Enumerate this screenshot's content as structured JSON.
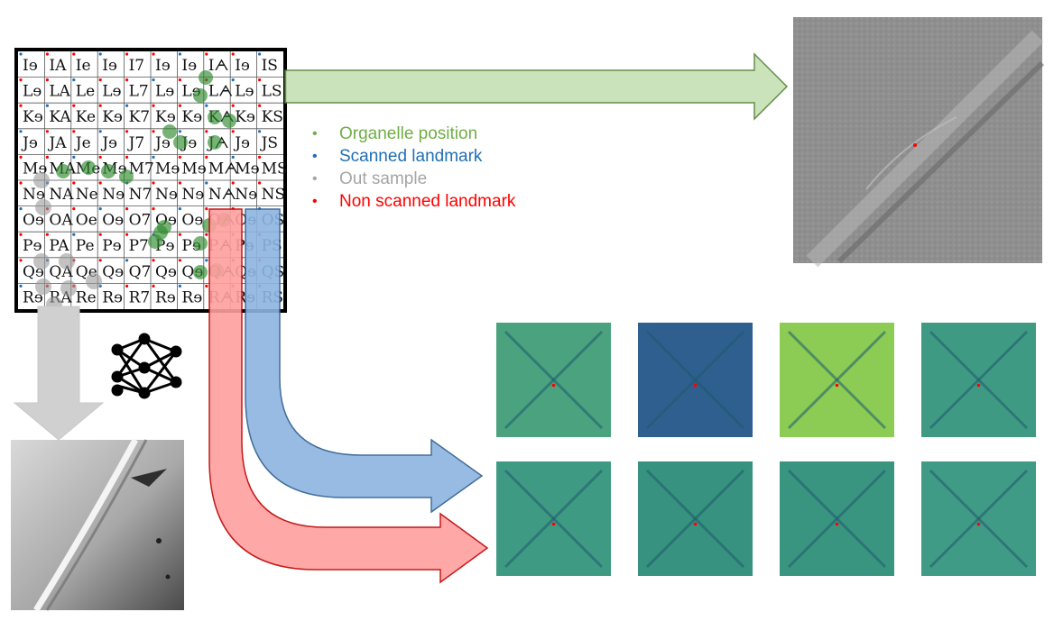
{
  "grid": {
    "row_letters": [
      "I",
      "L",
      "K",
      "J",
      "M",
      "N",
      "O",
      "P",
      "Q",
      "R"
    ],
    "column_marks": [
      "ɘ",
      "A",
      "e",
      "ɘ",
      "7",
      "ɘ",
      "ɘ",
      "ᗅ",
      "ɘ",
      "S"
    ]
  },
  "legend": {
    "items": [
      {
        "label": "Organelle position",
        "color": "#70ad47"
      },
      {
        "label": "Scanned landmark",
        "color": "#1f6fb4"
      },
      {
        "label": "Out sample",
        "color": "#a6a6a6"
      },
      {
        "label": "Non scanned landmark",
        "color": "#ff0000"
      }
    ]
  },
  "colors": {
    "green_arrow": "#c5e0b4",
    "green_arrow_stroke": "#548235",
    "blue_arrow": "#8db4e2",
    "blue_arrow_stroke": "#2e5f8e",
    "red_arrow": "#ff9f9f",
    "red_arrow_stroke": "#c00000",
    "gray_arrow": "#d0d0d0",
    "organelle_dot": "#2e8b2e",
    "outsample_dot": "#9a9a9a"
  },
  "thumbnails": {
    "row1": [
      "#4aa37e",
      "#2e5f8f",
      "#8ccc55",
      "#3f9a84"
    ],
    "row2": [
      "#3f9a84",
      "#37927f",
      "#3a9580",
      "#3f9a86"
    ]
  },
  "icons": {
    "network": "neural-network-icon"
  }
}
